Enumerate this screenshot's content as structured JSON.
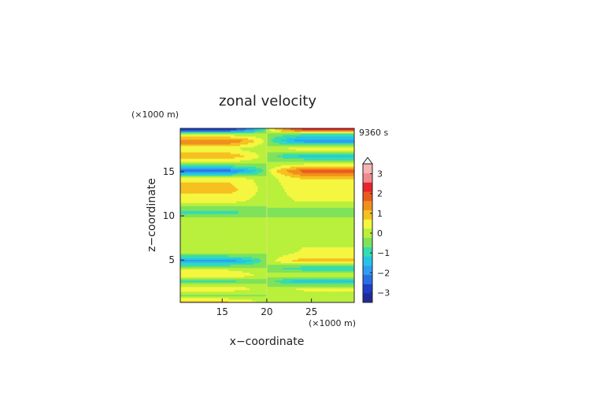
{
  "chart_data": {
    "type": "heatmap",
    "title": "zonal velocity",
    "xlabel": "x−coordinate",
    "ylabel": "z−coordinate",
    "x_unit": "(×1000 m)",
    "y_unit": "(×1000 m)",
    "time_label": "9360 s",
    "xlim": [
      10.3,
      29.8
    ],
    "ylim": [
      0.2,
      19.9
    ],
    "x_ticks": [
      {
        "value": 15,
        "label": "15"
      },
      {
        "value": 20,
        "label": "20"
      },
      {
        "value": 25,
        "label": "25"
      }
    ],
    "y_ticks": [
      {
        "value": 5,
        "label": "5"
      },
      {
        "value": 10,
        "label": "10"
      },
      {
        "value": 15,
        "label": "15"
      }
    ],
    "colorbar": {
      "levels": [
        -3.5,
        -3,
        -2.5,
        -2,
        -1.5,
        -1,
        -0.5,
        0,
        0.5,
        1,
        1.5,
        2,
        2.5,
        3,
        3.5
      ],
      "colors": [
        "#202a9a",
        "#1f3ec6",
        "#2a6ee4",
        "#2f9df2",
        "#25c4e6",
        "#35dcb0",
        "#7fe25a",
        "#b8f03c",
        "#f4f640",
        "#f6c020",
        "#f0901c",
        "#ec5a1e",
        "#e8242a",
        "#f08a90",
        "#f6b4b4"
      ],
      "tick_labels": [
        {
          "value": 3,
          "label": "3"
        },
        {
          "value": 2,
          "label": "2"
        },
        {
          "value": 1,
          "label": "1"
        },
        {
          "value": 0,
          "label": "0"
        },
        {
          "value": -1,
          "label": "−1"
        },
        {
          "value": -2,
          "label": "−2"
        },
        {
          "value": -3,
          "label": "−3"
        }
      ],
      "extend": "max"
    },
    "field_bands": [
      {
        "z": 19.75,
        "left": -2.8,
        "right": 2.6
      },
      {
        "z": 19.3,
        "left": 0.0,
        "right": -0.5
      },
      {
        "z": 18.5,
        "left": 2.1,
        "right": -1.9
      },
      {
        "z": 17.6,
        "left": 0.5,
        "right": 0.9
      },
      {
        "z": 16.8,
        "left": 1.4,
        "right": -1.2
      },
      {
        "z": 16.0,
        "left": 0.3,
        "right": 0.2
      },
      {
        "z": 15.1,
        "left": -2.2,
        "right": 2.3
      },
      {
        "z": 14.2,
        "left": 0.9,
        "right": 1.0
      },
      {
        "z": 13.0,
        "left": 1.2,
        "right": 0.8
      },
      {
        "z": 11.7,
        "left": 0.7,
        "right": 0.6
      },
      {
        "z": 10.4,
        "left": -0.7,
        "right": -0.5
      },
      {
        "z": 9.5,
        "left": 0.4,
        "right": 0.5
      },
      {
        "z": 8.4,
        "left": 0.2,
        "right": 0.3
      },
      {
        "z": 7.2,
        "left": 0.1,
        "right": 0.4
      },
      {
        "z": 5.8,
        "left": 0.2,
        "right": 0.6
      },
      {
        "z": 4.9,
        "left": -1.8,
        "right": 1.3
      },
      {
        "z": 4.1,
        "left": 0.3,
        "right": -0.9
      },
      {
        "z": 3.3,
        "left": 1.0,
        "right": 0.4
      },
      {
        "z": 2.6,
        "left": -0.6,
        "right": -1.3
      },
      {
        "z": 1.8,
        "left": 0.9,
        "right": 0.6
      },
      {
        "z": 1.0,
        "left": -0.2,
        "right": 0.3
      },
      {
        "z": 0.4,
        "left": 1.0,
        "right": 0.1
      }
    ],
    "grid": false,
    "legend_position": "right"
  }
}
